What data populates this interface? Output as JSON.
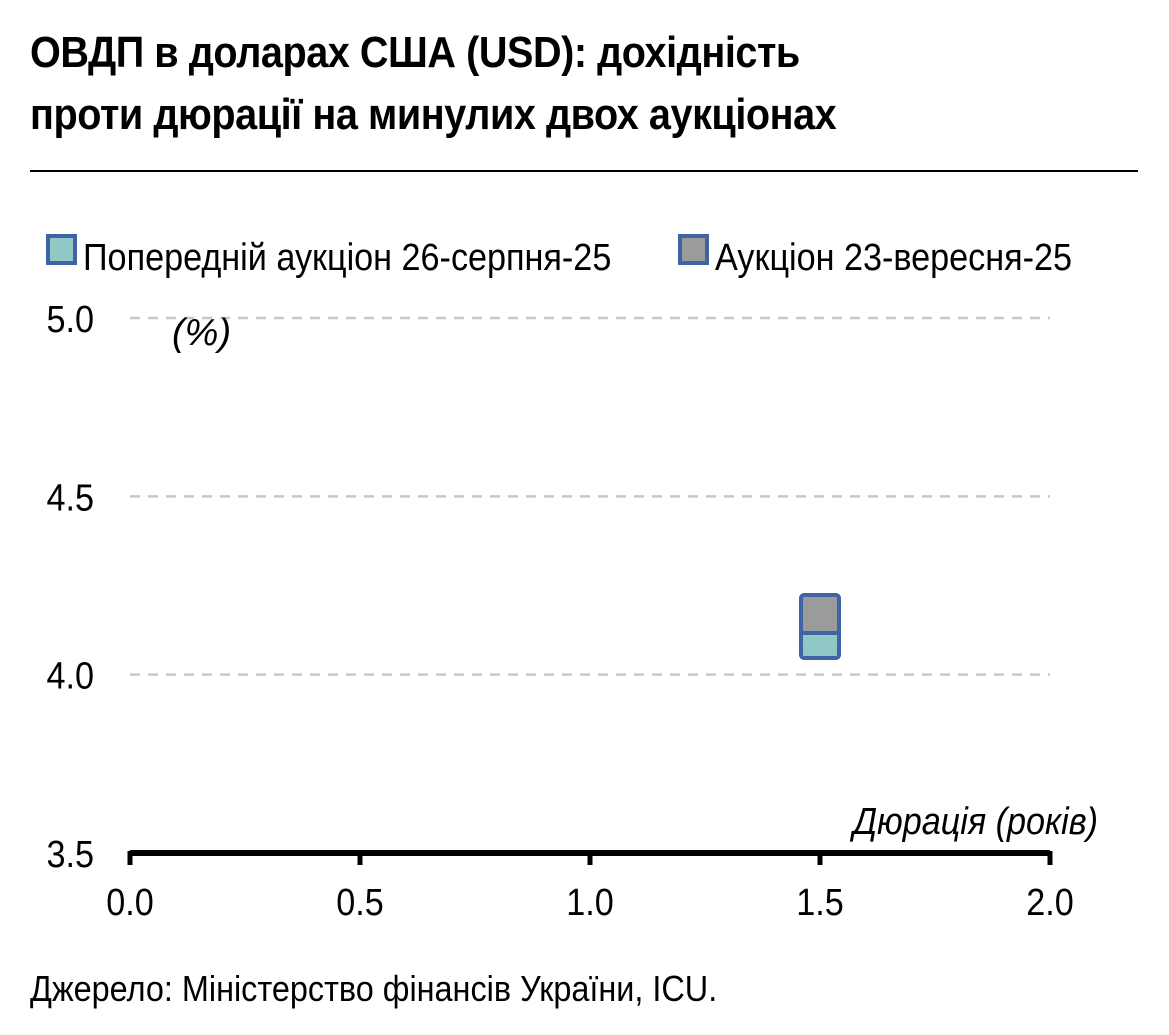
{
  "title_line1": "ОВДП в доларах США (USD): дохідність",
  "title_line2": "проти дюрації на минулих двох аукціонах",
  "source": "Джерело: Міністерство фінансів України, ICU.",
  "colors": {
    "previous_fill": "#8fc8c4",
    "current_fill": "#9b9b9b",
    "marker_border": "#3f63a4",
    "grid": "#c8c8c8",
    "axis": "#000000"
  },
  "chart_data": {
    "type": "scatter",
    "title": "ОВДП в доларах США (USD): дохідність проти дюрації на минулих двох аукціонах",
    "xlabel": "Дюрація (років)",
    "ylabel": "(%)",
    "xlim": [
      0.0,
      2.0
    ],
    "ylim": [
      3.5,
      5.0
    ],
    "x_ticks": [
      "0.0",
      "0.5",
      "1.0",
      "1.5",
      "2.0"
    ],
    "y_ticks": [
      "5.0",
      "4.5",
      "4.0",
      "3.5"
    ],
    "grid": "horizontal-dashed",
    "legend_position": "top",
    "series": [
      {
        "name": "Попередній аукціон 26-серпня-25",
        "points": [
          {
            "x": 1.5,
            "y": 4.1
          }
        ]
      },
      {
        "name": "Аукціон 23-вересня-25",
        "points": [
          {
            "x": 1.5,
            "y": 4.17
          }
        ]
      }
    ]
  }
}
